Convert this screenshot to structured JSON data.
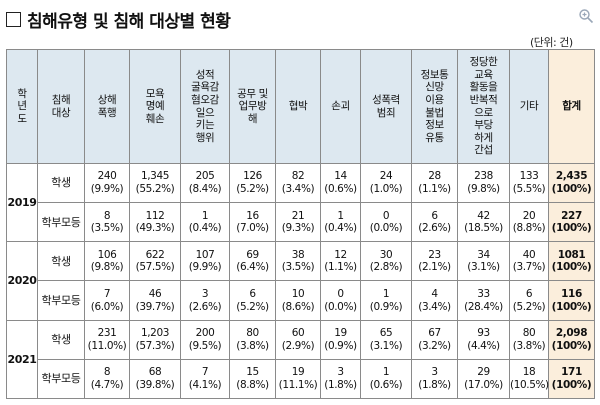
{
  "title": "침해유형 및 침해 대상별 현황",
  "unit": "(단위: 건)",
  "icons": {
    "zoom": "zoom-in-icon"
  },
  "headers": {
    "year": [
      "학",
      "년",
      "도"
    ],
    "target": [
      "침해",
      "대상"
    ],
    "columns": [
      [
        "상해",
        "폭행"
      ],
      [
        "모욕",
        "명예",
        "훼손"
      ],
      [
        "성적",
        "굴욕감",
        "혐오감",
        "일으",
        "키는",
        "행위"
      ],
      [
        "공무 및",
        "업무방",
        "해"
      ],
      [
        "협박"
      ],
      [
        "손괴"
      ],
      [
        "성폭력",
        "범죄"
      ],
      [
        "정보통",
        "신망",
        "이용",
        "불법",
        "정보",
        "유통"
      ],
      [
        "정당한",
        "교육",
        "활동을",
        "반복적",
        "으로",
        "부당",
        "하게",
        "간섭"
      ],
      [
        "기타"
      ]
    ],
    "total": "합계"
  },
  "rows": [
    {
      "year": "2019",
      "target": "학생",
      "cells": [
        [
          "240",
          "(9.9%)"
        ],
        [
          "1,345",
          "(55.2%)"
        ],
        [
          "205",
          "(8.4%)"
        ],
        [
          "126",
          "(5.2%)"
        ],
        [
          "82",
          "(3.4%)"
        ],
        [
          "14",
          "(0.6%)"
        ],
        [
          "24",
          "(1.0%)"
        ],
        [
          "28",
          "(1.1%)"
        ],
        [
          "238",
          "(9.8%)"
        ],
        [
          "133",
          "(5.5%)"
        ]
      ],
      "total": [
        "2,435",
        "(100%)"
      ]
    },
    {
      "year": "2019",
      "target": "학부모등",
      "cells": [
        [
          "8",
          "(3.5%)"
        ],
        [
          "112",
          "(49.3%)"
        ],
        [
          "1",
          "(0.4%)"
        ],
        [
          "16",
          "(7.0%)"
        ],
        [
          "21",
          "(9.3%)"
        ],
        [
          "1",
          "(0.4%)"
        ],
        [
          "0",
          "(0.0%)"
        ],
        [
          "6",
          "(2.6%)"
        ],
        [
          "42",
          "(18.5%)"
        ],
        [
          "20",
          "(8.8%)"
        ]
      ],
      "total": [
        "227",
        "(100%)"
      ]
    },
    {
      "year": "2020",
      "target": "학생",
      "cells": [
        [
          "106",
          "(9.8%)"
        ],
        [
          "622",
          "(57.5%)"
        ],
        [
          "107",
          "(9.9%)"
        ],
        [
          "69",
          "(6.4%)"
        ],
        [
          "38",
          "(3.5%)"
        ],
        [
          "12",
          "(1.1%)"
        ],
        [
          "30",
          "(2.8%)"
        ],
        [
          "23",
          "(2.1%)"
        ],
        [
          "34",
          "(3.1%)"
        ],
        [
          "40",
          "(3.7%)"
        ]
      ],
      "total": [
        "1081",
        "(100%)"
      ]
    },
    {
      "year": "2020",
      "target": "학부모등",
      "cells": [
        [
          "7",
          "(6.0%)"
        ],
        [
          "46",
          "(39.7%)"
        ],
        [
          "3",
          "(2.6%)"
        ],
        [
          "6",
          "(5.2%)"
        ],
        [
          "10",
          "(8.6%)"
        ],
        [
          "0",
          "(0.0%)"
        ],
        [
          "1",
          "(0.9%)"
        ],
        [
          "4",
          "(3.4%)"
        ],
        [
          "33",
          "(28.4%)"
        ],
        [
          "6",
          "(5.2%)"
        ]
      ],
      "total": [
        "116",
        "(100%)"
      ]
    },
    {
      "year": "2021",
      "target": "학생",
      "cells": [
        [
          "231",
          "(11.0%)"
        ],
        [
          "1,203",
          "(57.3%)"
        ],
        [
          "200",
          "(9.5%)"
        ],
        [
          "80",
          "(3.8%)"
        ],
        [
          "60",
          "(2.9%)"
        ],
        [
          "19",
          "(0.9%)"
        ],
        [
          "65",
          "(3.1%)"
        ],
        [
          "67",
          "(3.2%)"
        ],
        [
          "93",
          "(4.4%)"
        ],
        [
          "80",
          "(3.8%)"
        ]
      ],
      "total": [
        "2,098",
        "(100%)"
      ]
    },
    {
      "year": "2021",
      "target": "학부모등",
      "cells": [
        [
          "8",
          "(4.7%)"
        ],
        [
          "68",
          "(39.8%)"
        ],
        [
          "7",
          "(4.1%)"
        ],
        [
          "15",
          "(8.8%)"
        ],
        [
          "19",
          "(11.1%)"
        ],
        [
          "3",
          "(1.8%)"
        ],
        [
          "1",
          "(0.6%)"
        ],
        [
          "3",
          "(1.8%)"
        ],
        [
          "29",
          "(17.0%)"
        ],
        [
          "18",
          "(10.5%)"
        ]
      ],
      "total": [
        "171",
        "(100%)"
      ]
    }
  ]
}
